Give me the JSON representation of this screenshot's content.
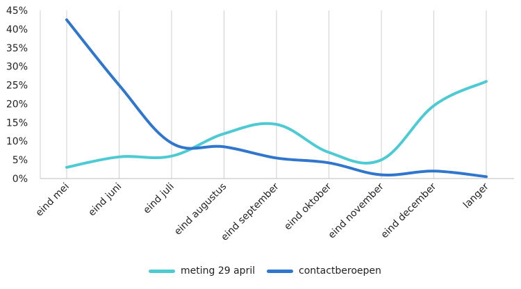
{
  "chart_data": {
    "type": "line",
    "title": "",
    "xlabel": "",
    "ylabel": "",
    "ylim": [
      0,
      45
    ],
    "y_tick_format": "percent",
    "y_ticks": [
      0,
      5,
      10,
      15,
      20,
      25,
      30,
      35,
      40,
      45
    ],
    "y_tick_labels": [
      "0%",
      "5%",
      "10%",
      "15%",
      "20%",
      "25%",
      "30%",
      "35%",
      "40%",
      "45%"
    ],
    "categories": [
      "eind mei",
      "eind juni",
      "eind juli",
      "eind augustus",
      "eind september",
      "eind oktober",
      "eind november",
      "eind december",
      "langer"
    ],
    "grid": "vertical lines at categories",
    "legend_position": "bottom",
    "series": [
      {
        "name": "meting 29 april",
        "color": "#4ecad3",
        "values": [
          3,
          5.8,
          6,
          12,
          14.5,
          7,
          5,
          19.5,
          26
        ]
      },
      {
        "name": "contactberoepen",
        "color": "#2f76cc",
        "values": [
          42.5,
          25,
          9.5,
          8.5,
          5.5,
          4.2,
          1,
          2,
          0.5
        ]
      }
    ]
  }
}
